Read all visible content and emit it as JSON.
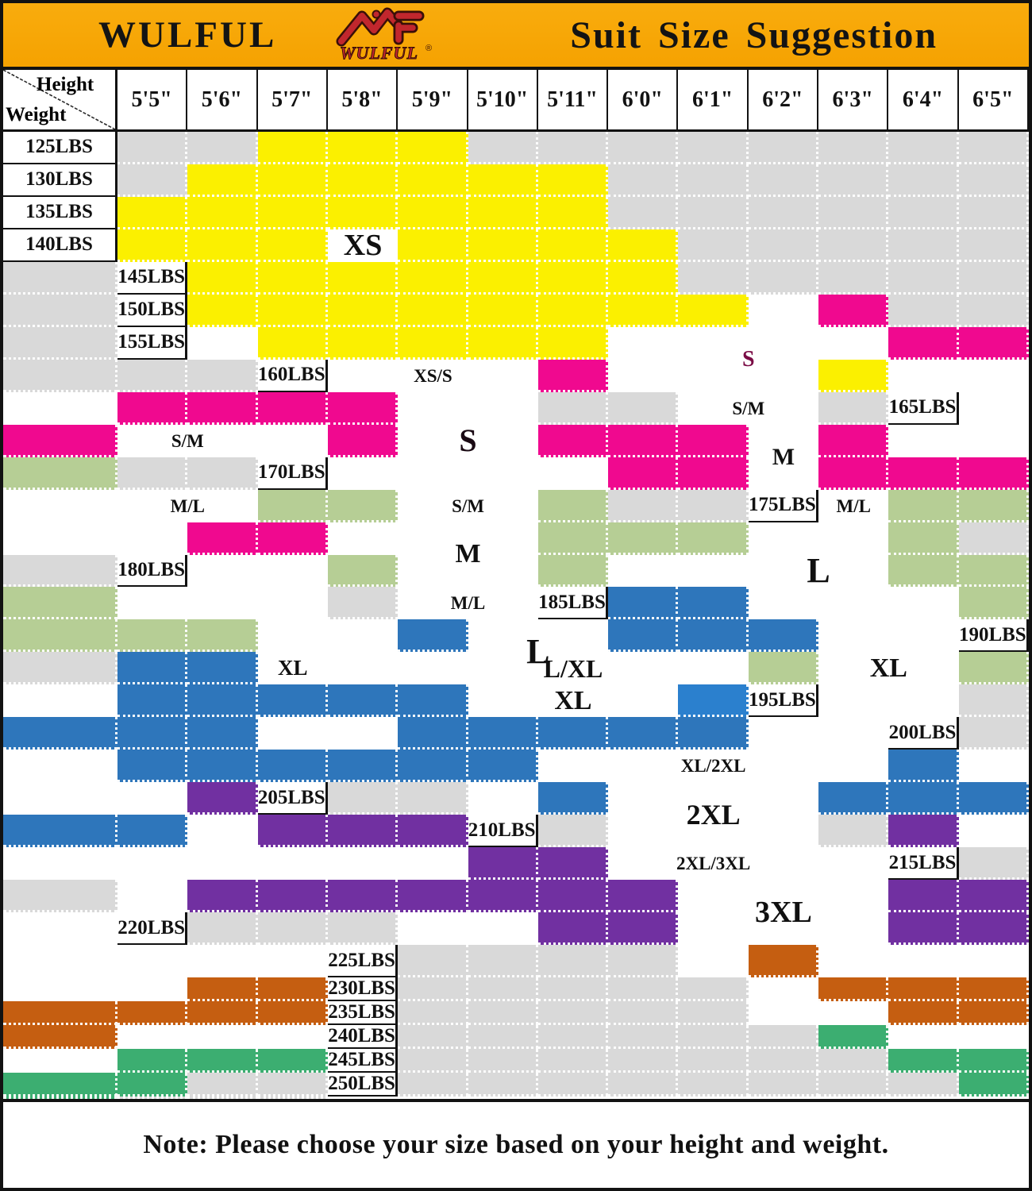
{
  "banner": {
    "brand": "WULFUL",
    "title": "Suit Size Suggestion",
    "logo_text": "WULFUL",
    "logo_reg": "®",
    "bg_color": "#F9AC0D",
    "logo_color": "#C1272D"
  },
  "corner": {
    "top": "Height",
    "bottom": "Weight"
  },
  "note": "Note: Please choose your size based on your height and weight.",
  "chart_data": {
    "type": "heatmap",
    "title": "Suit Size Suggestion",
    "xlabel": "Height",
    "ylabel": "Weight",
    "heights": [
      "5'5\"",
      "5'6\"",
      "5'7\"",
      "5'8\"",
      "5'9\"",
      "5'10\"",
      "5'11\"",
      "6'0\"",
      "6'1\"",
      "6'2\"",
      "6'3\"",
      "6'4\"",
      "6'5\""
    ],
    "weights": [
      "125LBS",
      "130LBS",
      "135LBS",
      "140LBS",
      "145LBS",
      "150LBS",
      "155LBS",
      "160LBS",
      "165LBS",
      "170LBS",
      "175LBS",
      "180LBS",
      "185LBS",
      "190LBS",
      "195LBS",
      "200LBS",
      "205LBS",
      "210LBS",
      "215LBS",
      "220LBS",
      "225LBS",
      "230LBS",
      "235LBS",
      "240LBS",
      "245LBS",
      "250LBS"
    ],
    "size_key": {
      "y": "XS",
      "m": "S",
      "n": "M",
      "b": "L",
      "B": "L",
      "p": "XL",
      "o": "2XL",
      "t": "3XL",
      "w": "between-sizes",
      "g": "not-available"
    },
    "palette": {
      "g": "#D9D9D9",
      "w": "#FFFFFF",
      "y": "#FBF000",
      "m": "#F0098F",
      "n": "#B6CE95",
      "b": "#2E76BB",
      "B": "#2B80CE",
      "p": "#7130A1",
      "o": "#C55E11",
      "t": "#3CAE71"
    },
    "cells": [
      [
        "g",
        "g",
        "y",
        "y",
        "y",
        "g",
        "g",
        "g",
        "g",
        "g",
        "g",
        "g",
        "g"
      ],
      [
        "g",
        "y",
        "y",
        "y",
        "y",
        "y",
        "y",
        "g",
        "g",
        "g",
        "g",
        "g",
        "g"
      ],
      [
        "y",
        "y",
        "y",
        "y",
        "y",
        "y",
        "y",
        "g",
        "g",
        "g",
        "g",
        "g",
        "g"
      ],
      [
        "y",
        "y",
        "y",
        "y",
        "y",
        "y",
        "y",
        "g",
        "g",
        "g",
        "g",
        "g",
        "g"
      ],
      [
        "y",
        "y",
        "y",
        "y",
        "y",
        "y",
        "y",
        "g",
        "g",
        "g",
        "g",
        "g",
        "g"
      ],
      [
        "y",
        "y",
        "y",
        "y",
        "y",
        "y",
        "y",
        "y",
        "w",
        "m",
        "g",
        "g",
        "g"
      ],
      [
        "w",
        "y",
        "y",
        "y",
        "y",
        "y",
        "w",
        "w",
        "m",
        "m",
        "g",
        "g",
        "g"
      ],
      [
        "m",
        "w",
        "y",
        "w",
        "w",
        "w",
        "m",
        "m",
        "m",
        "m",
        "g",
        "g",
        "g"
      ],
      [
        "w",
        "m",
        "w",
        "m",
        "m",
        "m",
        "m",
        "m",
        "w",
        "w",
        "n",
        "g",
        "g"
      ],
      [
        "w",
        "w",
        "m",
        "m",
        "m",
        "m",
        "m",
        "w",
        "n",
        "n",
        "n",
        "g",
        "g"
      ],
      [
        "n",
        "n",
        "w",
        "w",
        "m",
        "m",
        "w",
        "n",
        "n",
        "n",
        "n",
        "g",
        "g"
      ],
      [
        "w",
        "w",
        "n",
        "n",
        "w",
        "w",
        "n",
        "n",
        "n",
        "w",
        "w",
        "w",
        "g"
      ],
      [
        "b",
        "b",
        "w",
        "n",
        "n",
        "n",
        "n",
        "w",
        "w",
        "b",
        "b",
        "b",
        "b"
      ],
      [
        "g",
        "b",
        "b",
        "w",
        "n",
        "n",
        "w",
        "b",
        "b",
        "b",
        "b",
        "b",
        "B"
      ],
      [
        "g",
        "b",
        "b",
        "b",
        "w",
        "w",
        "b",
        "b",
        "b",
        "b",
        "b",
        "w",
        "w"
      ],
      [
        "g",
        "w",
        "b",
        "b",
        "b",
        "b",
        "b",
        "b",
        "b",
        "w",
        "w",
        "w",
        "p"
      ],
      [
        "g",
        "g",
        "w",
        "b",
        "b",
        "b",
        "b",
        "b",
        "b",
        "w",
        "p",
        "p",
        "p"
      ],
      [
        "g",
        "g",
        "p",
        "w",
        "w",
        "w",
        "w",
        "w",
        "w",
        "w",
        "p",
        "p",
        "w"
      ],
      [
        "g",
        "g",
        "w",
        "p",
        "p",
        "p",
        "p",
        "p",
        "p",
        "p",
        "p",
        "p",
        "w"
      ],
      [
        "g",
        "g",
        "g",
        "w",
        "w",
        "p",
        "p",
        "p",
        "p",
        "w",
        "w",
        "w",
        "w"
      ],
      [
        "g",
        "g",
        "g",
        "g",
        "w",
        "o",
        "w",
        "w",
        "w",
        "w",
        "w",
        "o",
        "o"
      ],
      [
        "g",
        "g",
        "g",
        "g",
        "g",
        "w",
        "o",
        "o",
        "o",
        "o",
        "o",
        "o",
        "o"
      ],
      [
        "g",
        "g",
        "g",
        "g",
        "g",
        "w",
        "w",
        "o",
        "o",
        "o",
        "w",
        "w",
        "w"
      ],
      [
        "g",
        "g",
        "g",
        "g",
        "g",
        "g",
        "t",
        "w",
        "w",
        "w",
        "t",
        "t",
        "t"
      ],
      [
        "g",
        "g",
        "g",
        "g",
        "g",
        "g",
        "g",
        "t",
        "t",
        "t",
        "t",
        "g",
        "g"
      ],
      [
        "g",
        "g",
        "g",
        "g",
        "g",
        "g",
        "g",
        "g",
        "t",
        "t",
        "g",
        "g",
        "g"
      ]
    ],
    "labels": [
      {
        "text": "XS",
        "col": 4,
        "colspan": 1,
        "row": 4,
        "rowspan": 1,
        "size": 38,
        "color": "#101010"
      },
      {
        "text": "XS/S",
        "col": 4,
        "colspan": 3,
        "row": 8,
        "rowspan": 1,
        "size": 23,
        "color": "#101010"
      },
      {
        "text": "S",
        "col": 5,
        "colspan": 2,
        "row": 9,
        "rowspan": 3,
        "size": 40,
        "color": "#1a0a14"
      },
      {
        "text": "S",
        "col": 9,
        "colspan": 2,
        "row": 7,
        "rowspan": 2,
        "size": 28,
        "color": "#7A0B45"
      },
      {
        "text": "S/M",
        "col": 1,
        "colspan": 2,
        "row": 10,
        "rowspan": 1,
        "size": 23,
        "color": "#101010"
      },
      {
        "text": "S/M",
        "col": 9,
        "colspan": 2,
        "row": 9,
        "rowspan": 1,
        "size": 23,
        "color": "#101010"
      },
      {
        "text": "S/M",
        "col": 5,
        "colspan": 2,
        "row": 12,
        "rowspan": 1,
        "size": 23,
        "color": "#101010"
      },
      {
        "text": "M",
        "col": 5,
        "colspan": 2,
        "row": 13,
        "rowspan": 2,
        "size": 34,
        "color": "#101010"
      },
      {
        "text": "M",
        "col": 10,
        "colspan": 1,
        "row": 10,
        "rowspan": 2,
        "size": 30,
        "color": "#101010"
      },
      {
        "text": "M/L",
        "col": 1,
        "colspan": 2,
        "row": 12,
        "rowspan": 1,
        "size": 23,
        "color": "#101010"
      },
      {
        "text": "M/L",
        "col": 11,
        "colspan": 1,
        "row": 12,
        "rowspan": 1,
        "size": 23,
        "color": "#101010"
      },
      {
        "text": "M/L",
        "col": 5,
        "colspan": 2,
        "row": 15,
        "rowspan": 1,
        "size": 23,
        "color": "#101010"
      },
      {
        "text": "L",
        "col": 6,
        "colspan": 2,
        "row": 16,
        "rowspan": 2,
        "size": 44,
        "color": "#101010"
      },
      {
        "text": "L",
        "col": 10,
        "colspan": 2,
        "row": 13,
        "rowspan": 3,
        "size": 44,
        "color": "#101010"
      },
      {
        "text": "L/XL",
        "col": 5,
        "colspan": 5,
        "row": 17,
        "rowspan": 1,
        "size": 32,
        "color": "#101010"
      },
      {
        "text": "XL",
        "col": 3,
        "colspan": 1,
        "row": 17,
        "rowspan": 1,
        "size": 27,
        "color": "#101010"
      },
      {
        "text": "XL",
        "col": 6,
        "colspan": 3,
        "row": 18,
        "rowspan": 1,
        "size": 34,
        "color": "#101010"
      },
      {
        "text": "XL",
        "col": 11,
        "colspan": 2,
        "row": 16,
        "rowspan": 3,
        "size": 34,
        "color": "#101010"
      },
      {
        "text": "XL/2XL",
        "col": 7,
        "colspan": 5,
        "row": 20,
        "rowspan": 1,
        "size": 23,
        "color": "#101010"
      },
      {
        "text": "2XL",
        "col": 8,
        "colspan": 3,
        "row": 21,
        "rowspan": 2,
        "size": 36,
        "color": "#101010"
      },
      {
        "text": "2XL/3XL",
        "col": 8,
        "colspan": 3,
        "row": 23,
        "rowspan": 1,
        "size": 23,
        "color": "#101010"
      },
      {
        "text": "3XL",
        "col": 9,
        "colspan": 3,
        "row": 24,
        "rowspan": 2,
        "size": 38,
        "color": "#101010"
      }
    ]
  }
}
